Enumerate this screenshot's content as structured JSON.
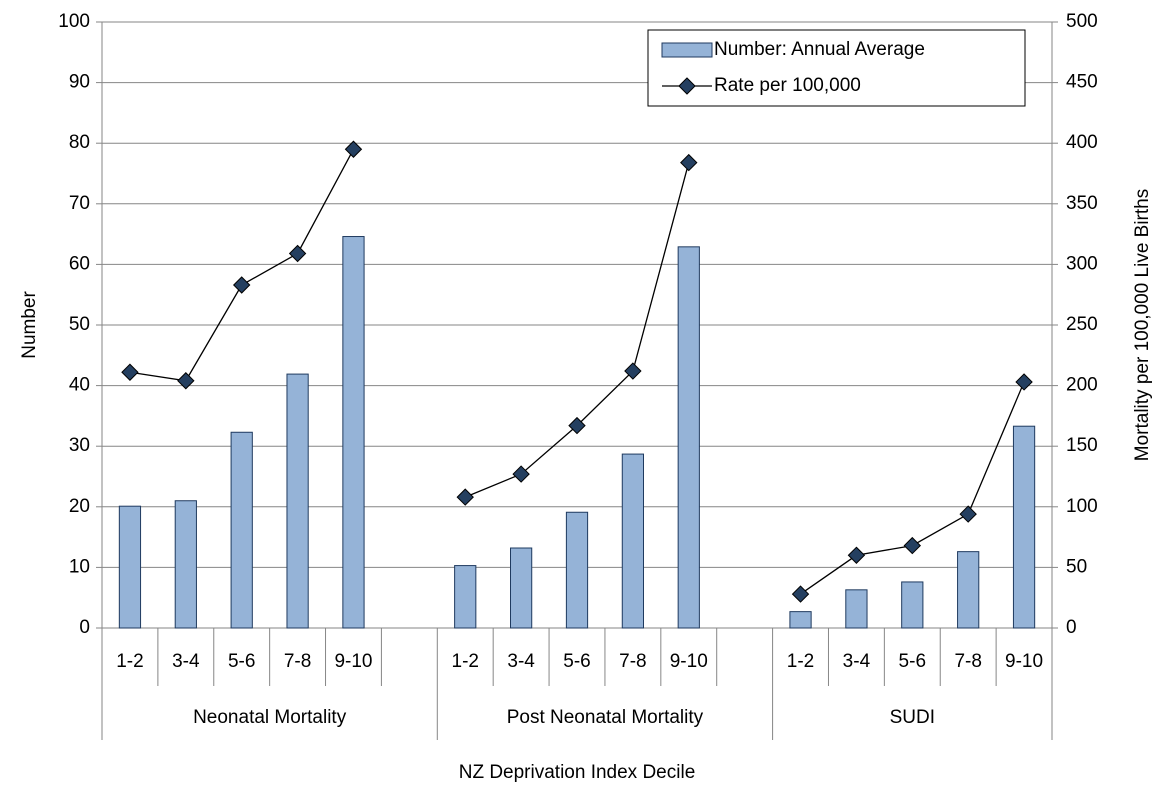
{
  "chart_data": {
    "type": "bar-line",
    "y_label": "Number",
    "y2_label": "Mortality per 100,000 Live Births",
    "x_label": "NZ Deprivation Index Decile",
    "categories": [
      "1-2",
      "3-4",
      "5-6",
      "7-8",
      "9-10",
      null,
      "1-2",
      "3-4",
      "5-6",
      "7-8",
      "9-10",
      null,
      "1-2",
      "3-4",
      "5-6",
      "7-8",
      "9-10"
    ],
    "groups": [
      "Neonatal Mortality",
      "Post  Neonatal Mortality",
      "SUDI"
    ],
    "series": [
      {
        "name": "Number: Annual Average",
        "type": "bar",
        "color": "#95b3d7",
        "values": [
          20.1,
          21,
          32.3,
          41.9,
          64.6,
          null,
          10.3,
          13.2,
          19.1,
          28.7,
          62.9,
          null,
          2.7,
          6.3,
          7.6,
          12.6,
          33.3
        ]
      },
      {
        "name": "Rate per 100,000",
        "type": "line",
        "axis": "y2",
        "color": "#243f60",
        "values": [
          211,
          204,
          283,
          309,
          395,
          null,
          108,
          127,
          167,
          212,
          384,
          null,
          28,
          60,
          68,
          94,
          203
        ]
      }
    ],
    "ylim": [
      0,
      100
    ],
    "yticks": [
      0,
      10,
      20,
      30,
      40,
      50,
      60,
      70,
      80,
      90,
      100
    ],
    "y2lim": [
      0,
      500
    ],
    "y2ticks": [
      0,
      50,
      100,
      150,
      200,
      250,
      300,
      350,
      400,
      450,
      500
    ],
    "grid": true,
    "legend": "top-right"
  }
}
